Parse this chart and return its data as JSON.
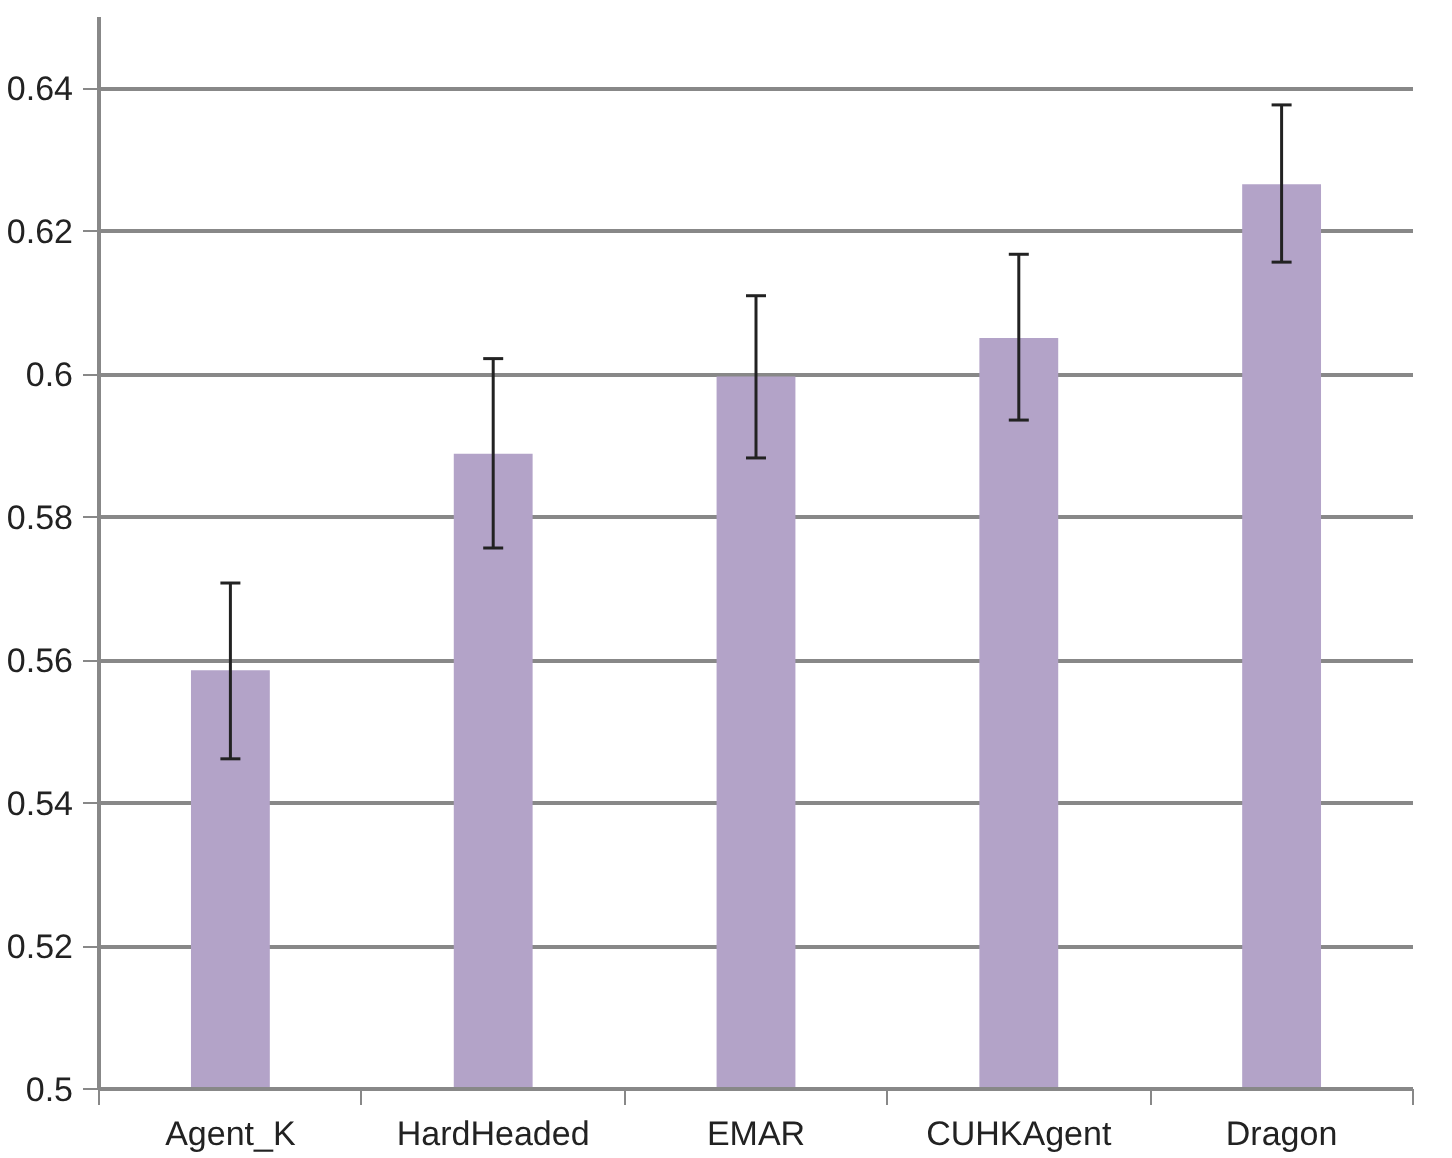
{
  "chart_data": {
    "type": "bar",
    "categories": [
      "Agent_K",
      "HardHeaded",
      "EMAR",
      "CUHKAgent",
      "Dragon"
    ],
    "values": [
      0.5586,
      0.5889,
      0.5997,
      0.6051,
      0.6266
    ],
    "errors": [
      [
        0.5462,
        0.5708
      ],
      [
        0.5757,
        0.6022
      ],
      [
        0.5883,
        0.611
      ],
      [
        0.5936,
        0.6168
      ],
      [
        0.6157,
        0.6377
      ]
    ],
    "color": "#b3a3c8",
    "ylim": [
      0.5,
      0.65
    ],
    "yticks": [
      0.5,
      0.52,
      0.54,
      0.56,
      0.58,
      0.6,
      0.62,
      0.64
    ],
    "grid": "y"
  }
}
